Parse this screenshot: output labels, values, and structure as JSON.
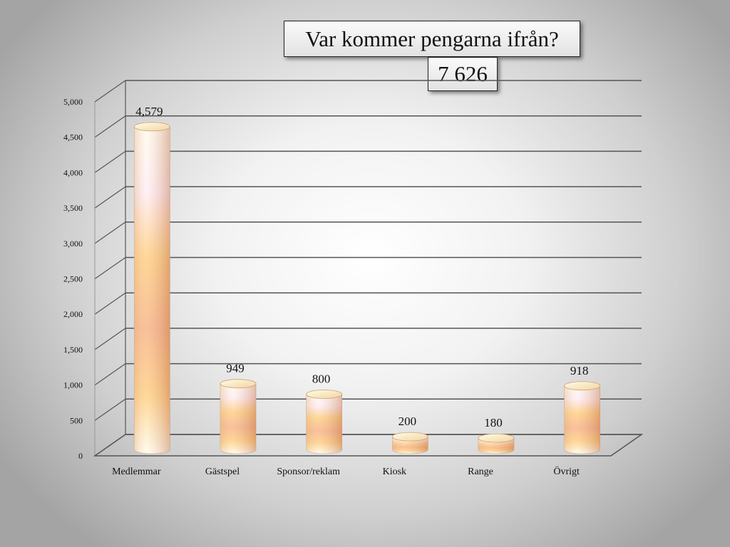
{
  "title": "Var kommer pengarna ifrån?",
  "total": "7 626",
  "chart_data": {
    "type": "bar",
    "categories": [
      "Medlemmar",
      "Gästspel",
      "Sponsor/reklam",
      "Kiosk",
      "Range",
      "Övrigt"
    ],
    "values": [
      4579,
      949,
      800,
      200,
      180,
      918
    ],
    "data_labels": [
      "4,579",
      "949",
      "800",
      "200",
      "180",
      "918"
    ],
    "ylim": [
      0,
      5000
    ],
    "yticks": [
      "0",
      "500",
      "1,000",
      "1,500",
      "2,000",
      "2,500",
      "3,000",
      "3,500",
      "4,000",
      "4,500",
      "5,000"
    ],
    "grid": true,
    "style": "3d-cylinder",
    "colors": {
      "bar_light": "#fffbe8",
      "bar_mid": "#ffc66a",
      "bar_dark": "#f7a46e",
      "grid": "#555555"
    }
  }
}
